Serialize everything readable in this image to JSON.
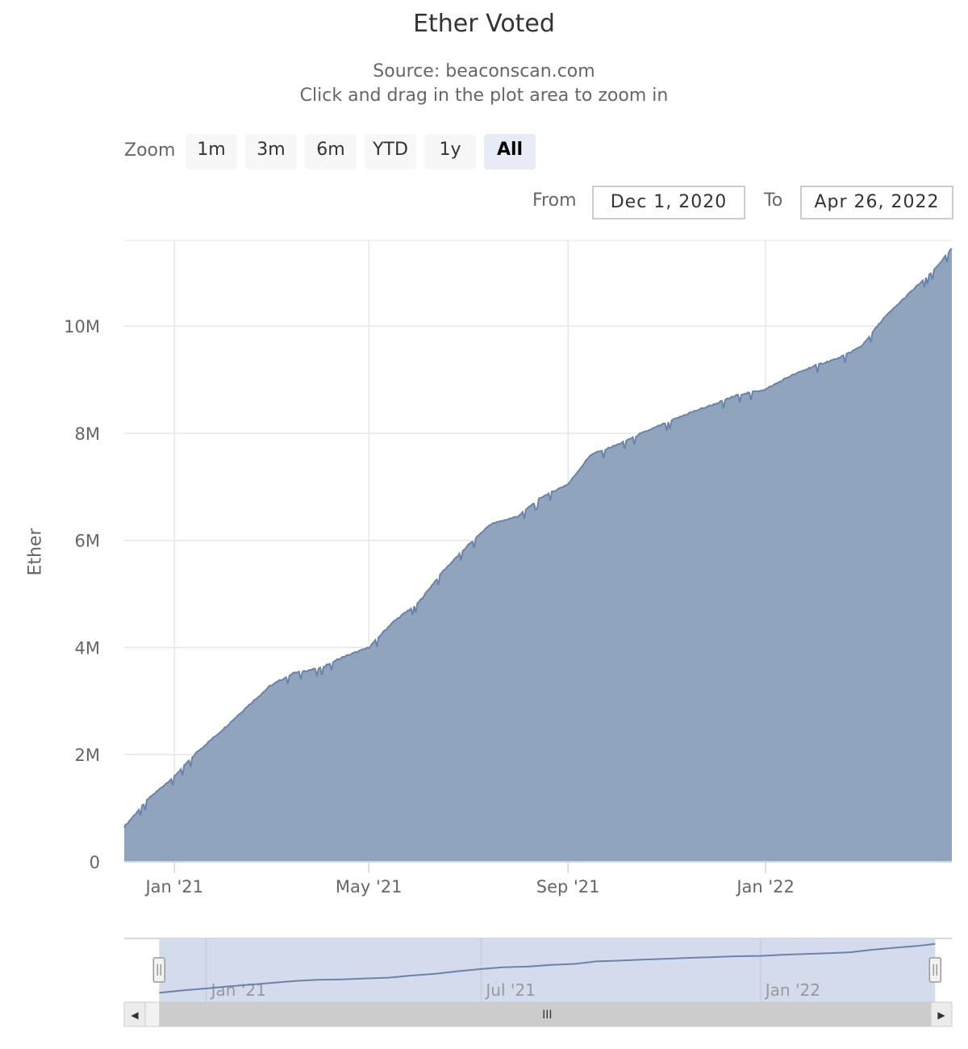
{
  "chart_data": {
    "type": "area",
    "title": "Ether Voted",
    "subtitle_lines": [
      "Source: beaconscan.com",
      "Click and drag in the plot area to zoom in"
    ],
    "ylabel": "Ether",
    "xlabel": "",
    "ylim": [
      0,
      11600000
    ],
    "y_ticks": [
      0,
      2000000,
      4000000,
      6000000,
      8000000,
      10000000
    ],
    "y_tick_labels": [
      "0",
      "2M",
      "4M",
      "6M",
      "8M",
      "10M"
    ],
    "x_range": [
      "2020-12-01",
      "2022-04-26"
    ],
    "x_ticks": [
      {
        "date": "2021-01-01",
        "label": "Jan '21"
      },
      {
        "date": "2021-05-01",
        "label": "May '21"
      },
      {
        "date": "2021-09-01",
        "label": "Sep '21"
      },
      {
        "date": "2022-01-01",
        "label": "Jan '22"
      }
    ],
    "grid": true,
    "series": [
      {
        "color": "#6b83a8",
        "fill": "#8fa2bd",
        "points": [
          [
            "2020-12-01",
            650000
          ],
          [
            "2020-12-15",
            1150000
          ],
          [
            "2021-01-01",
            1600000
          ],
          [
            "2021-01-15",
            2050000
          ],
          [
            "2021-02-01",
            2500000
          ],
          [
            "2021-02-15",
            2900000
          ],
          [
            "2021-03-01",
            3280000
          ],
          [
            "2021-03-15",
            3520000
          ],
          [
            "2021-04-01",
            3620000
          ],
          [
            "2021-04-15",
            3820000
          ],
          [
            "2021-05-01",
            4000000
          ],
          [
            "2021-05-15",
            4450000
          ],
          [
            "2021-06-01",
            4850000
          ],
          [
            "2021-06-15",
            5400000
          ],
          [
            "2021-07-01",
            5900000
          ],
          [
            "2021-07-15",
            6300000
          ],
          [
            "2021-08-01",
            6450000
          ],
          [
            "2021-08-15",
            6800000
          ],
          [
            "2021-09-01",
            7050000
          ],
          [
            "2021-09-15",
            7600000
          ],
          [
            "2021-10-01",
            7780000
          ],
          [
            "2021-10-15",
            7980000
          ],
          [
            "2021-11-01",
            8200000
          ],
          [
            "2021-11-15",
            8380000
          ],
          [
            "2021-12-01",
            8550000
          ],
          [
            "2021-12-15",
            8720000
          ],
          [
            "2022-01-01",
            8820000
          ],
          [
            "2022-01-15",
            9050000
          ],
          [
            "2022-02-01",
            9270000
          ],
          [
            "2022-02-15",
            9400000
          ],
          [
            "2022-03-01",
            9620000
          ],
          [
            "2022-03-15",
            10150000
          ],
          [
            "2022-04-01",
            10650000
          ],
          [
            "2022-04-15",
            11050000
          ],
          [
            "2022-04-26",
            11450000
          ]
        ]
      }
    ]
  },
  "range_selector": {
    "zoom_label": "Zoom",
    "buttons": [
      "1m",
      "3m",
      "6m",
      "YTD",
      "1y",
      "All"
    ],
    "selected": "All",
    "from_label": "From",
    "from_value": "Dec 1, 2020",
    "to_label": "To",
    "to_value": "Apr 26, 2022"
  },
  "navigator": {
    "x_labels": [
      "Jan '21",
      "Jul '21",
      "Jan '22"
    ],
    "scrollbar_grip": "III",
    "left_arrow": "◀",
    "right_arrow": "▶"
  }
}
